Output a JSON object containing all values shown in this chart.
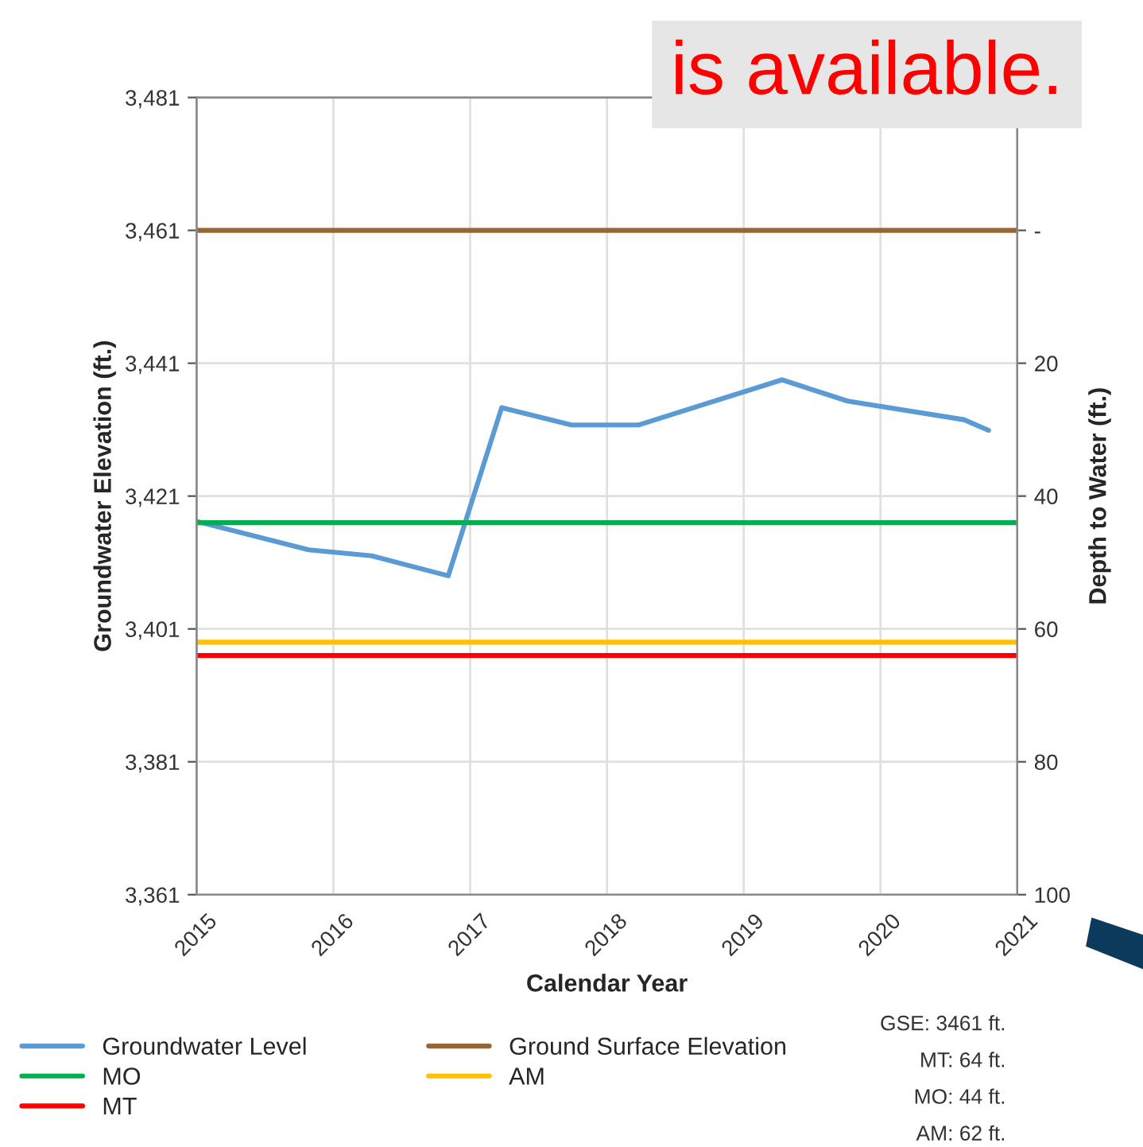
{
  "chart_data": {
    "type": "line",
    "xlabel": "Calendar Year",
    "ylabel": "Groundwater Elevation (ft.)",
    "y2label": "Depth to Water (ft.)",
    "xlim": [
      2015,
      2021
    ],
    "xticks": [
      2015,
      2016,
      2017,
      2018,
      2019,
      2020,
      2021
    ],
    "ylim": [
      3361,
      3481
    ],
    "yticks": [
      {
        "value": 3361,
        "label": "3,361"
      },
      {
        "value": 3381,
        "label": "3,381"
      },
      {
        "value": 3401,
        "label": "3,401"
      },
      {
        "value": 3421,
        "label": "3,421"
      },
      {
        "value": 3441,
        "label": "3,441"
      },
      {
        "value": 3461,
        "label": "3,461"
      },
      {
        "value": 3481,
        "label": "3,481"
      }
    ],
    "y2lim": [
      100,
      -20
    ],
    "y2ticks": [
      100,
      80,
      60,
      40,
      20,
      {
        "value": 0,
        "label": "-"
      }
    ],
    "grid": true,
    "legend": "bottom",
    "marker": "none",
    "line_style": "solid",
    "series": [
      {
        "name": "Groundwater Level",
        "color": "#5b9bd5",
        "x": [
          2015.0,
          2015.82,
          2016.28,
          2016.84,
          2017.23,
          2017.74,
          2018.23,
          2019.28,
          2019.76,
          2020.61,
          2020.79
        ],
        "values": [
          3417.2,
          3412.9,
          3412.0,
          3409.0,
          3434.3,
          3431.7,
          3431.7,
          3438.5,
          3435.3,
          3432.5,
          3430.9
        ]
      },
      {
        "name": "MO",
        "color": "#00b050",
        "x": [
          2015,
          2021
        ],
        "values": [
          3417,
          3417
        ]
      },
      {
        "name": "MT",
        "color": "#ff0000",
        "x": [
          2015,
          2021
        ],
        "values": [
          3397,
          3397
        ]
      },
      {
        "name": "Ground Surface Elevation",
        "color": "#996633",
        "x": [
          2015,
          2021
        ],
        "values": [
          3461,
          3461
        ]
      },
      {
        "name": "AM",
        "color": "#ffc000",
        "x": [
          2015,
          2021
        ],
        "values": [
          3399,
          3399
        ]
      }
    ],
    "annotations": [
      "is available.",
      "GSE: 3461 ft.",
      "MT: 64 ft.",
      "MO: 44 ft.",
      "AM: 62 ft."
    ]
  }
}
